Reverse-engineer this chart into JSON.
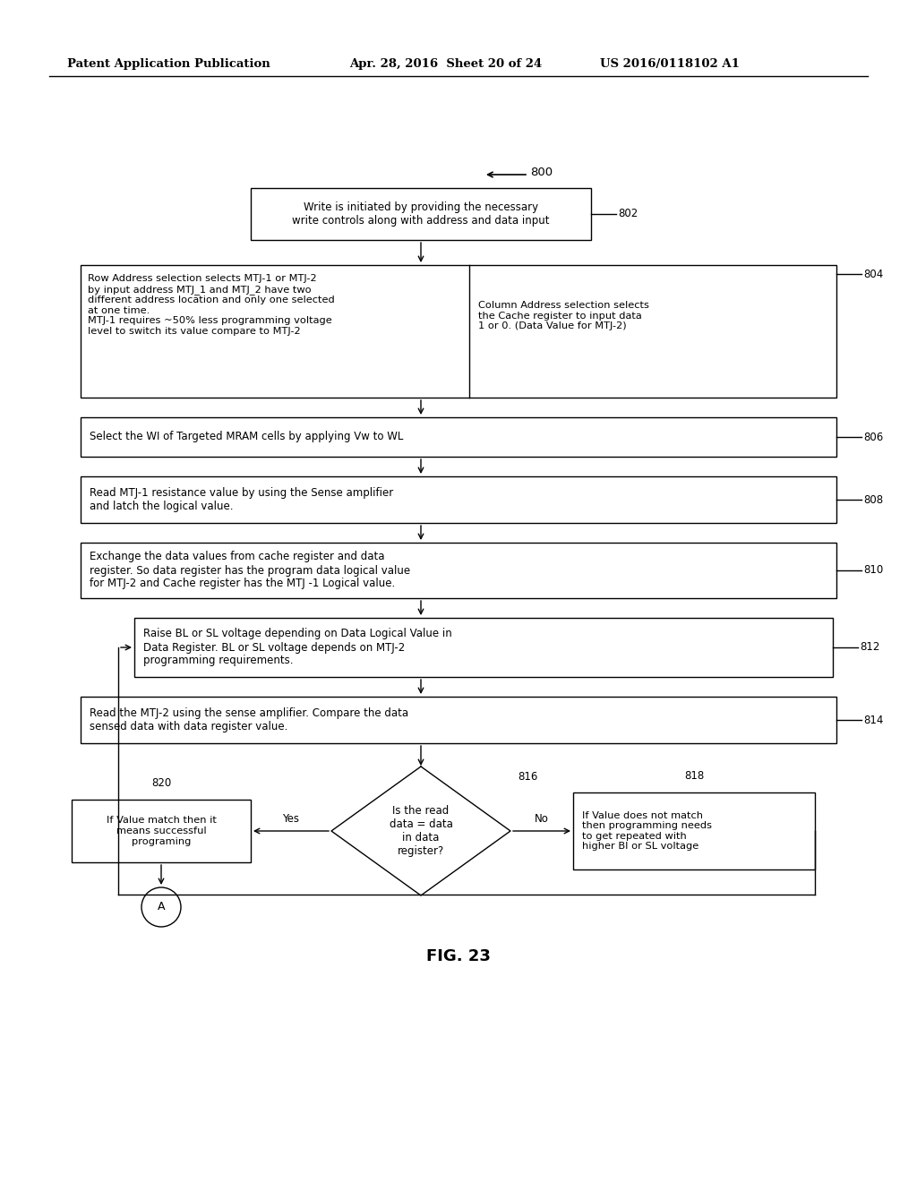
{
  "bg_color": "#ffffff",
  "header_left": "Patent Application Publication",
  "header_mid": "Apr. 28, 2016  Sheet 20 of 24",
  "header_right": "US 2016/0118102 A1",
  "fig_label": "FIG. 23",
  "diagram_label": "800"
}
